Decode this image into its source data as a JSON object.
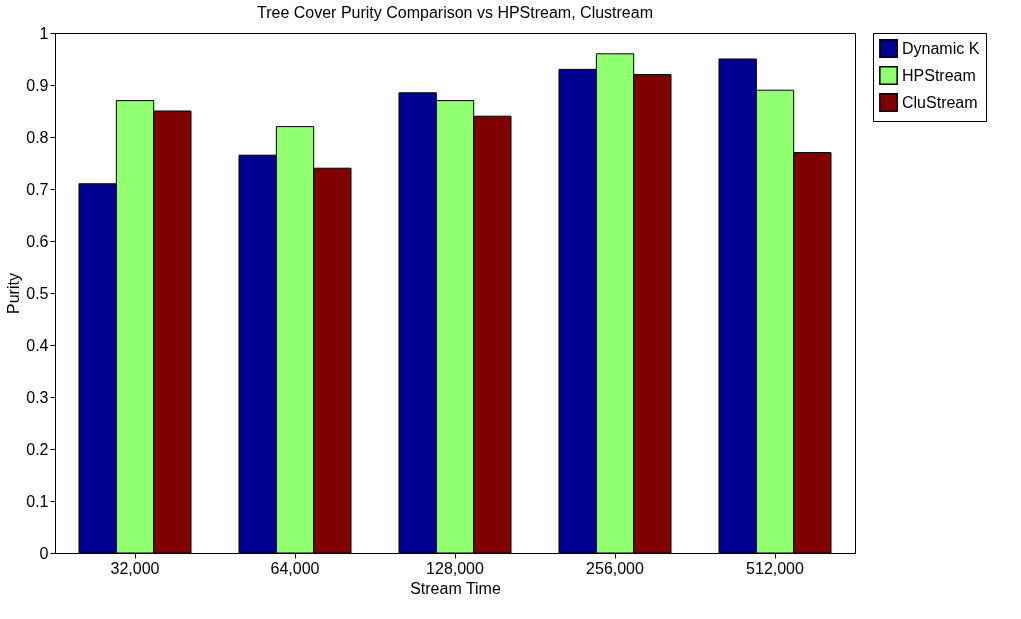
{
  "chart_data": {
    "type": "bar",
    "title": "Tree Cover Purity Comparison vs HPStream, Clustream",
    "xlabel": "Stream Time",
    "ylabel": "Purity",
    "categories": [
      "32,000",
      "64,000",
      "128,000",
      "256,000",
      "512,000"
    ],
    "series": [
      {
        "name": "Dynamic K",
        "color": "#000090",
        "values": [
          0.71,
          0.765,
          0.885,
          0.93,
          0.95
        ]
      },
      {
        "name": "HPStream",
        "color": "#90ff70",
        "values": [
          0.87,
          0.82,
          0.87,
          0.96,
          0.89
        ]
      },
      {
        "name": "CluStream",
        "color": "#800000",
        "values": [
          0.85,
          0.74,
          0.84,
          0.92,
          0.77
        ]
      }
    ],
    "ylim": [
      0,
      1
    ],
    "yticks": [
      0,
      0.1,
      0.2,
      0.3,
      0.4,
      0.5,
      0.6,
      0.7,
      0.8,
      0.9,
      1
    ],
    "grid": false,
    "legend": "right"
  }
}
